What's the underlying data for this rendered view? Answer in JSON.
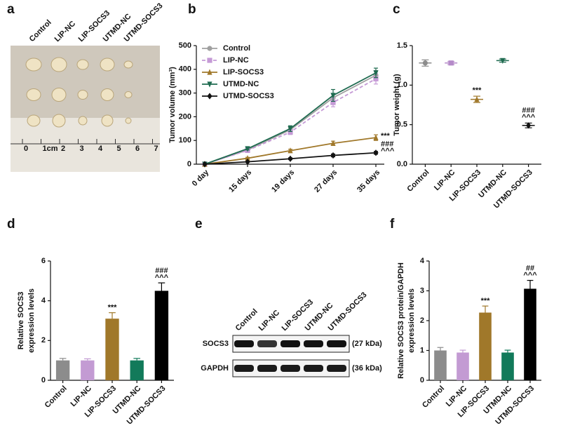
{
  "panel_letters": [
    "a",
    "b",
    "c",
    "d",
    "e",
    "f"
  ],
  "photo": {
    "groups": [
      "Control",
      "LIP-NC",
      "LIP-SOCS3",
      "UTMD-NC",
      "UTMD-SOCS3"
    ],
    "ruler_labels": [
      "0",
      "1cm",
      "2",
      "3",
      "4",
      "5",
      "6",
      "7"
    ]
  },
  "blot": {
    "lanes": [
      "Control",
      "LIP-NC",
      "LIP-SOCS3",
      "UTMD-NC",
      "UTMD-SOCS3"
    ],
    "rows": [
      "SOCS3",
      "GAPDH"
    ],
    "sizes": [
      "(27 kDa)",
      "(36 kDa)"
    ]
  },
  "chart_data": [
    {
      "type": "line",
      "ylabel": [
        "Tumor volume (mm³)"
      ],
      "categories": [
        "0 day",
        "15 days",
        "19 days",
        "27 days",
        "35 days"
      ],
      "ylim": [
        0,
        500
      ],
      "yticks": [
        0,
        100,
        200,
        300,
        400,
        500
      ],
      "legend": "top-left",
      "series": [
        {
          "name": "Control",
          "color": "#a0a0a0",
          "marker": "circle",
          "dash": false,
          "values": [
            0,
            60,
            145,
            280,
            375
          ],
          "errors": [
            0,
            5,
            10,
            18,
            20
          ],
          "annotations": null
        },
        {
          "name": "LIP-NC",
          "color": "#c59ad6",
          "marker": "square",
          "dash": true,
          "values": [
            0,
            58,
            135,
            260,
            360
          ],
          "errors": [
            0,
            5,
            10,
            18,
            22
          ],
          "annotations": null
        },
        {
          "name": "LIP-SOCS3",
          "color": "#a0782a",
          "marker": "triangle",
          "dash": false,
          "values": [
            0,
            25,
            57,
            88,
            112
          ],
          "errors": [
            0,
            4,
            6,
            9,
            12
          ],
          "annotations": [
            "***"
          ]
        },
        {
          "name": "UTMD-NC",
          "color": "#1f6b50",
          "marker": "triangle-down",
          "dash": false,
          "values": [
            0,
            65,
            150,
            290,
            385
          ],
          "errors": [
            0,
            5,
            12,
            25,
            20
          ],
          "annotations": null
        },
        {
          "name": "UTMD-SOCS3",
          "color": "#111111",
          "marker": "diamond",
          "dash": false,
          "values": [
            0,
            10,
            23,
            37,
            48
          ],
          "errors": [
            0,
            2,
            4,
            6,
            6
          ],
          "annotations": [
            "###",
            "^^^"
          ]
        }
      ]
    },
    {
      "type": "dot",
      "ylabel": [
        "Tumor weight (g)"
      ],
      "categories": [
        "Control",
        "LIP-NC",
        "LIP-SOCS3",
        "UTMD-NC",
        "UTMD-SOCS3"
      ],
      "ylim": [
        0,
        1.5
      ],
      "yticks": [
        {
          "value": 0,
          "label": "0.0"
        },
        {
          "value": 0.5,
          "label": "0.5"
        },
        {
          "value": 1,
          "label": "1.0"
        },
        {
          "value": 1.5,
          "label": "1.5"
        }
      ],
      "values": [
        1.28,
        1.28,
        0.82,
        1.31,
        0.49
      ],
      "errors": [
        0.04,
        0.02,
        0.04,
        0.02,
        0.03
      ],
      "colors": [
        "#8c8c8c",
        "#b58ac9",
        "#a0782a",
        "#1f6b50",
        "#111111"
      ],
      "annotations": [
        null,
        null,
        [
          "***"
        ],
        null,
        [
          "###",
          "^^^"
        ]
      ]
    },
    {
      "type": "bar",
      "ylabel": [
        "Relative SOCS3",
        "expression levels"
      ],
      "categories": [
        "Control",
        "LIP-NC",
        "LIP-SOCS3",
        "UTMD-NC",
        "UTMD-SOCS3"
      ],
      "ylim": [
        0,
        6
      ],
      "yticks": [
        0,
        2,
        4,
        6
      ],
      "values": [
        1.0,
        1.0,
        3.1,
        1.0,
        4.5
      ],
      "errors": [
        0.1,
        0.08,
        0.3,
        0.1,
        0.4
      ],
      "colors": [
        "#8c8c8c",
        "#c39bd3",
        "#a0782a",
        "#127a5a",
        "#000000"
      ],
      "annotations": [
        null,
        null,
        [
          "***"
        ],
        null,
        [
          "###",
          "^^^"
        ]
      ]
    },
    {
      "type": "bar",
      "ylabel": [
        "Relative SOCS3 protein/GAPDH",
        "expression levels"
      ],
      "categories": [
        "Control",
        "LIP-NC",
        "LIP-SOCS3",
        "UTMD-NC",
        "UTMD-SOCS3"
      ],
      "ylim": [
        0,
        4
      ],
      "yticks": [
        0,
        1,
        2,
        3,
        4
      ],
      "values": [
        1.0,
        0.93,
        2.27,
        0.93,
        3.07
      ],
      "errors": [
        0.1,
        0.08,
        0.22,
        0.08,
        0.28
      ],
      "colors": [
        "#8c8c8c",
        "#c39bd3",
        "#a0782a",
        "#127a5a",
        "#000000"
      ],
      "annotations": [
        null,
        null,
        [
          "***"
        ],
        null,
        [
          "##",
          "^^^"
        ]
      ]
    }
  ]
}
